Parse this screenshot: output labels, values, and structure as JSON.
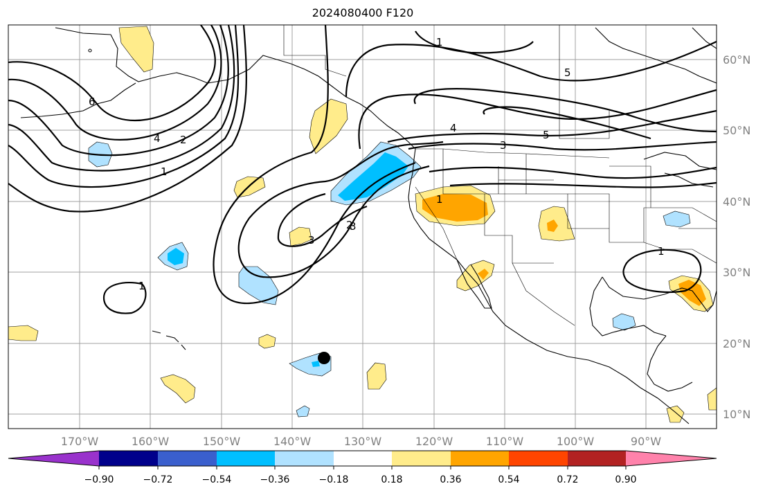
{
  "title": "2024080400 F120",
  "colors": {
    "neg_090": "#9932cc",
    "neg_072": "#00008b",
    "neg_054": "#3a5fcd",
    "neg_036": "#00bfff",
    "neg_018": "#b0e2ff",
    "near_zero": "#ffffff",
    "pos_018": "#ffec8b",
    "pos_036": "#ffa500",
    "pos_054": "#ff4500",
    "pos_072": "#b22222",
    "pos_090": "#ff82ab",
    "contour": "#000000",
    "grid": "#a0a0a0",
    "coast": "#000000"
  },
  "axes": {
    "lon_labels": [
      "170°W",
      "160°W",
      "150°W",
      "140°W",
      "130°W",
      "120°W",
      "110°W",
      "100°W",
      "90°W"
    ],
    "lat_labels": [
      "60°N",
      "50°N",
      "40°N",
      "30°N",
      "20°N",
      "10°N"
    ]
  },
  "colorbar": {
    "ticks": [
      "−0.90",
      "−0.72",
      "−0.54",
      "−0.36",
      "−0.18",
      "0.18",
      "0.36",
      "0.54",
      "0.72",
      "0.90"
    ],
    "colors": [
      "#00008b",
      "#3a5fcd",
      "#00bfff",
      "#b0e2ff",
      "#ffffff",
      "#ffec8b",
      "#ffa500",
      "#ff4500",
      "#b22222"
    ]
  },
  "contour_labels": [
    "1",
    "2",
    "3",
    "4",
    "5",
    "6",
    "1",
    "2",
    "3",
    "1",
    "1",
    "1",
    "3",
    "4",
    "5"
  ],
  "marker": {
    "lon": -135.5,
    "lat": 18
  }
}
